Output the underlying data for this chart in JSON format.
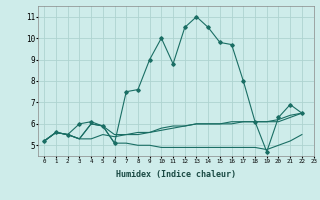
{
  "xlabel": "Humidex (Indice chaleur)",
  "bg_color": "#ceecea",
  "grid_color": "#aed4d0",
  "line_color": "#1a6e64",
  "xlim": [
    -0.5,
    23
  ],
  "ylim": [
    4.5,
    11.5
  ],
  "xticks": [
    0,
    1,
    2,
    3,
    4,
    5,
    6,
    7,
    8,
    9,
    10,
    11,
    12,
    13,
    14,
    15,
    16,
    17,
    18,
    19,
    20,
    21,
    22,
    23
  ],
  "yticks": [
    5,
    6,
    7,
    8,
    9,
    10,
    11
  ],
  "series_main": [
    5.2,
    5.6,
    5.5,
    6.0,
    6.1,
    5.9,
    5.1,
    7.5,
    7.6,
    9.0,
    10.0,
    8.8,
    10.5,
    11.0,
    10.5,
    9.8,
    9.7,
    8.0,
    6.1,
    4.7,
    6.3,
    6.9,
    6.5
  ],
  "series_flat1": [
    5.2,
    5.6,
    5.5,
    5.3,
    5.3,
    5.5,
    5.4,
    5.5,
    5.6,
    5.6,
    5.8,
    5.9,
    5.9,
    6.0,
    6.0,
    6.0,
    6.1,
    6.1,
    6.1,
    6.1,
    6.1,
    6.3,
    6.5
  ],
  "series_flat2": [
    5.2,
    5.6,
    5.5,
    5.3,
    6.0,
    5.9,
    5.5,
    5.5,
    5.5,
    5.6,
    5.7,
    5.8,
    5.9,
    6.0,
    6.0,
    6.0,
    6.0,
    6.1,
    6.1,
    6.1,
    6.2,
    6.4,
    6.5
  ],
  "series_flat3": [
    5.2,
    5.6,
    5.5,
    5.3,
    6.0,
    5.9,
    5.1,
    5.1,
    5.0,
    5.0,
    4.9,
    4.9,
    4.9,
    4.9,
    4.9,
    4.9,
    4.9,
    4.9,
    4.9,
    4.8,
    5.0,
    5.2,
    5.5
  ]
}
